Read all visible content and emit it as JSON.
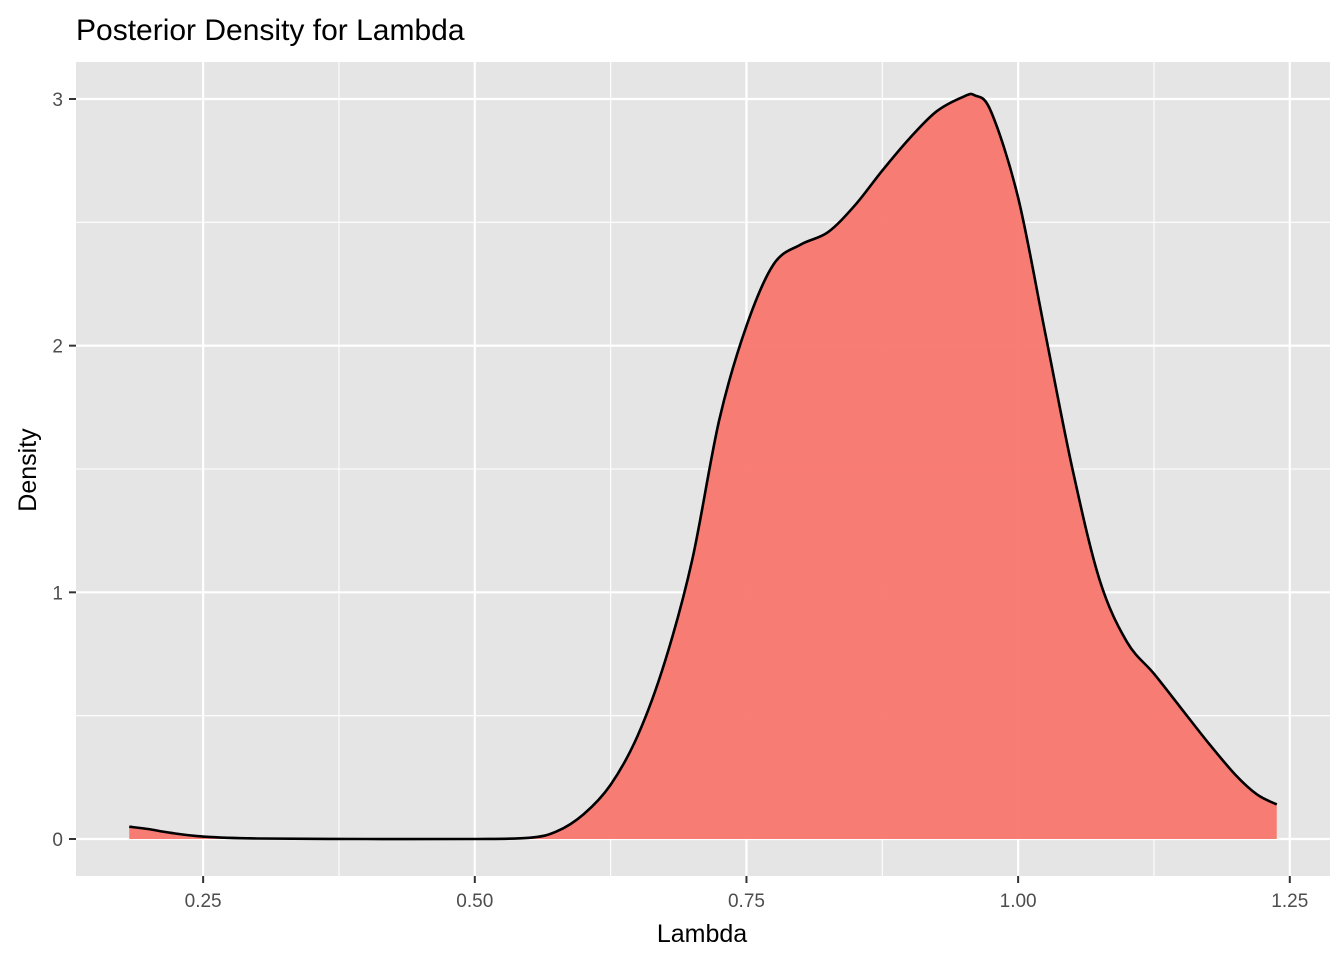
{
  "chart_data": {
    "type": "area",
    "title": "Posterior Density for Lambda",
    "xlabel": "Lambda",
    "ylabel": "Density",
    "xlim": [
      0.133,
      1.287
    ],
    "ylim": [
      -0.15,
      3.15
    ],
    "x_ticks": [
      0.25,
      0.5,
      0.75,
      1.0
    ],
    "x_ticks_extra": [
      1.25
    ],
    "x_tick_labels": [
      "0.25",
      "0.50",
      "0.75",
      "1.00",
      "1.25"
    ],
    "y_ticks": [
      0,
      1,
      2,
      3
    ],
    "y_tick_labels": [
      "0",
      "1",
      "2",
      "3"
    ],
    "grid": true,
    "legend": "none",
    "colors": {
      "panel_background": "#e5e5e5",
      "grid_major": "#ffffff",
      "fill": "#f8766d",
      "line": "#000000"
    },
    "series": [
      {
        "x": [
          0.182,
          0.2,
          0.22,
          0.25,
          0.3,
          0.4,
          0.5,
          0.55,
          0.575,
          0.6,
          0.625,
          0.65,
          0.675,
          0.7,
          0.725,
          0.75,
          0.775,
          0.8,
          0.825,
          0.85,
          0.875,
          0.9,
          0.925,
          0.95,
          0.96,
          0.975,
          1.0,
          1.025,
          1.05,
          1.075,
          1.1,
          1.125,
          1.15,
          1.175,
          1.2,
          1.22,
          1.238
        ],
        "y": [
          0.05,
          0.04,
          0.025,
          0.01,
          0.002,
          0.0,
          0.0,
          0.005,
          0.03,
          0.1,
          0.22,
          0.42,
          0.72,
          1.13,
          1.7,
          2.08,
          2.33,
          2.41,
          2.46,
          2.57,
          2.71,
          2.84,
          2.95,
          3.01,
          3.015,
          2.95,
          2.6,
          2.05,
          1.5,
          1.05,
          0.8,
          0.67,
          0.53,
          0.39,
          0.26,
          0.18,
          0.14
        ]
      }
    ]
  }
}
